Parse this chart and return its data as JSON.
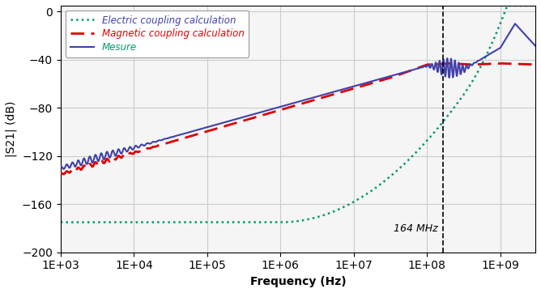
{
  "title": "",
  "xlabel": "Frequency (Hz)",
  "ylabel": "|S21| (dB)",
  "xlim": [
    1000.0,
    3000000000.0
  ],
  "ylim": [
    -200,
    5
  ],
  "yticks": [
    0,
    -40,
    -80,
    -120,
    -160,
    -200
  ],
  "vline_x": 164000000.0,
  "vline_label": "164 MHz",
  "legend_entries": [
    "Mesure",
    "Magnetic coupling calculation",
    "Electric coupling calculation"
  ],
  "colors": {
    "mesure": "#4040aa",
    "magnetic": "#dd0000",
    "electric": "#009966"
  },
  "grid_color": "#cccccc",
  "background_color": "#f5f5f5"
}
